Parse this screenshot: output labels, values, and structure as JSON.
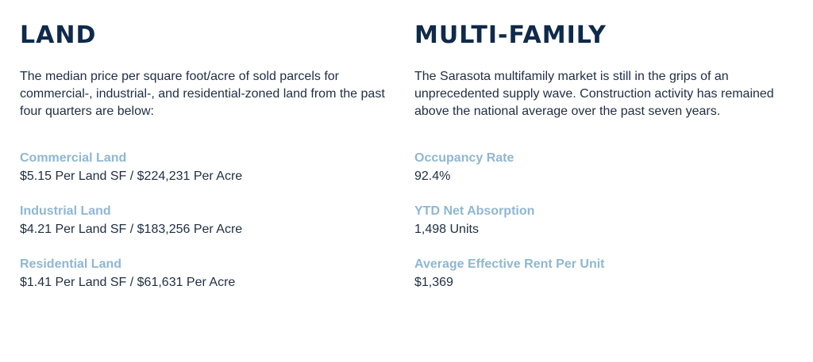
{
  "land": {
    "heading": "LAND",
    "intro": "The median price per square foot/acre of sold parcels for commercial-, industrial-, and residential-zoned land from the past four quarters are below:",
    "stats": [
      {
        "label": "Commercial Land",
        "value": "$5.15 Per Land SF / $224,231 Per Acre"
      },
      {
        "label": "Industrial Land",
        "value": "$4.21 Per Land SF / $183,256 Per Acre"
      },
      {
        "label": "Residential Land",
        "value": "$1.41 Per Land SF / $61,631 Per Acre"
      }
    ]
  },
  "multifamily": {
    "heading": "MULTI-FAMILY",
    "intro": "The Sarasota multifamily market is still in the grips of an unprecedented supply wave. Construction activity has remained above the national average over the past seven years.",
    "stats": [
      {
        "label": "Occupancy Rate",
        "value": "92.4%"
      },
      {
        "label": "YTD Net Absorption",
        "value": "1,498 Units"
      },
      {
        "label": "Average Effective Rent Per Unit",
        "value": "$1,369"
      }
    ]
  },
  "colors": {
    "heading": "#0f2a4a",
    "label": "#8fb7d1",
    "body": "#1f2d44"
  }
}
